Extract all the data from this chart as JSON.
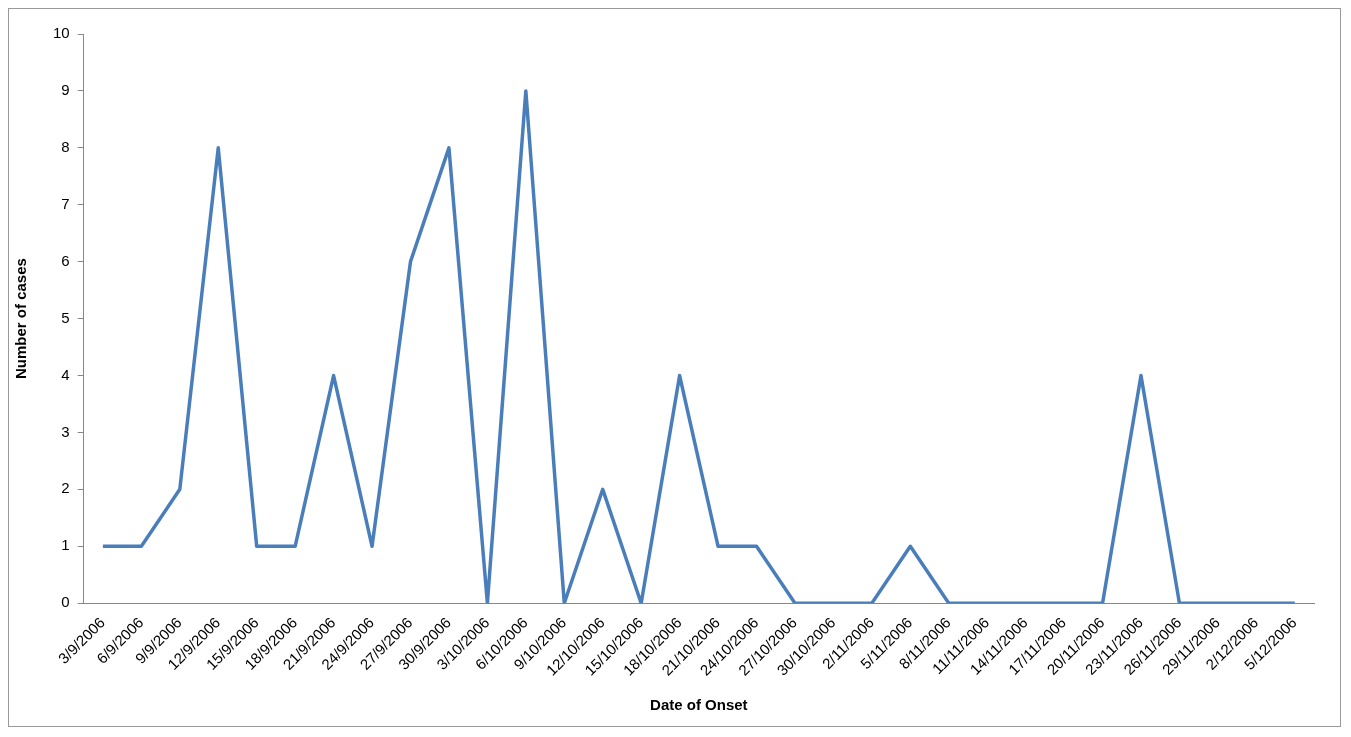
{
  "chart_data": {
    "type": "line",
    "xlabel": "Date of Onset",
    "ylabel": "Number of cases",
    "categories": [
      "3/9/2006",
      "6/9/2006",
      "9/9/2006",
      "12/9/2006",
      "15/9/2006",
      "18/9/2006",
      "21/9/2006",
      "24/9/2006",
      "27/9/2006",
      "30/9/2006",
      "3/10/2006",
      "6/10/2006",
      "9/10/2006",
      "12/10/2006",
      "15/10/2006",
      "18/10/2006",
      "21/10/2006",
      "24/10/2006",
      "27/10/2006",
      "30/10/2006",
      "2/11/2006",
      "5/11/2006",
      "8/11/2006",
      "11/11/2006",
      "14/11/2006",
      "17/11/2006",
      "20/11/2006",
      "23/11/2006",
      "26/11/2006",
      "29/11/2006",
      "2/12/2006",
      "5/12/2006"
    ],
    "series": [
      {
        "color": "#4a7ebb",
        "values": [
          1,
          1,
          2,
          8,
          1,
          1,
          4,
          1,
          6,
          8,
          0,
          9,
          0,
          2,
          0,
          4,
          1,
          1,
          0,
          0,
          0,
          1,
          0,
          0,
          0,
          0,
          0,
          4,
          0,
          0,
          0,
          0
        ]
      }
    ],
    "ylim": [
      0,
      10
    ],
    "yticks": [
      0,
      1,
      2,
      3,
      4,
      5,
      6,
      7,
      8,
      9,
      10
    ],
    "grid": false,
    "legend": false,
    "marker": "none",
    "line_style": "solid"
  }
}
